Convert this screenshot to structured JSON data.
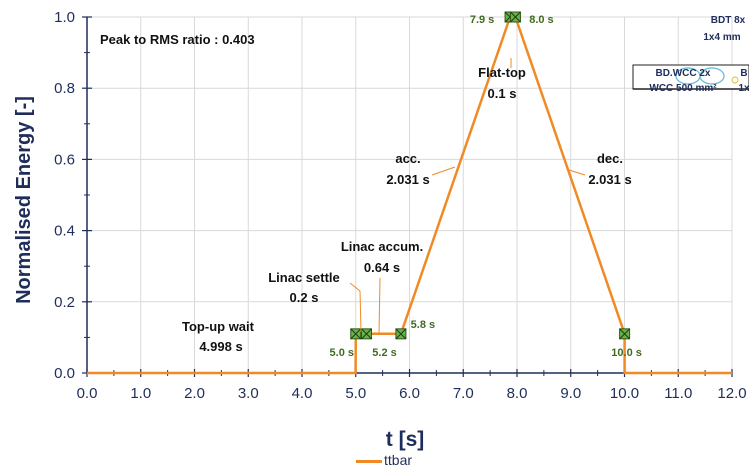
{
  "chart_data": {
    "type": "line",
    "title": "",
    "xlabel": "t [s]",
    "ylabel": "Normalised Energy [-]",
    "xlim": [
      0,
      12
    ],
    "ylim": [
      0,
      1
    ],
    "xticks": [
      "0.0",
      "1.0",
      "2.0",
      "3.0",
      "4.0",
      "5.0",
      "6.0",
      "7.0",
      "8.0",
      "9.0",
      "10.0",
      "11.0",
      "12.0"
    ],
    "yticks": [
      "0.0",
      "0.2",
      "0.4",
      "0.6",
      "0.8",
      "1.0"
    ],
    "grid": true,
    "legend_position": "bottom",
    "series": [
      {
        "name": "ttbar",
        "color": "#f08a24",
        "x": [
          0,
          4.998,
          5.0,
          5.2,
          5.84,
          7.871,
          7.971,
          10.002,
          10.002,
          12.0
        ],
        "y": [
          0,
          0,
          0.11,
          0.11,
          0.11,
          1.0,
          1.0,
          0.11,
          0,
          0
        ]
      }
    ],
    "markers": {
      "color": "#3f8f1f",
      "points": [
        {
          "x": 5.0,
          "y": 0.11,
          "label": "5.0 s"
        },
        {
          "x": 5.2,
          "y": 0.11,
          "label": "5.2 s"
        },
        {
          "x": 5.84,
          "y": 0.11,
          "label": "5.8 s"
        },
        {
          "x": 7.871,
          "y": 1.0,
          "label": "7.9 s"
        },
        {
          "x": 7.971,
          "y": 1.0,
          "label": "8.0 s"
        },
        {
          "x": 10.002,
          "y": 0.11,
          "label": "10.0 s"
        }
      ]
    },
    "annotations": {
      "peak_rms": "Peak to RMS ratio : 0.403",
      "topup": [
        "Top-up wait",
        "4.998 s"
      ],
      "settle": [
        "Linac settle",
        "0.2 s"
      ],
      "accum": [
        "Linac accum.",
        "0.64 s"
      ],
      "acc": [
        "acc.",
        "2.031 s"
      ],
      "flattop": [
        "Flat-top",
        "0.1 s"
      ],
      "dec": [
        "dec.",
        "2.031 s"
      ]
    },
    "inset": {
      "bdt_label": [
        "BDT 8x",
        "1x4 mm"
      ],
      "wcc_label": [
        "BD.WCC 2x",
        "WCC 500 mm²"
      ],
      "b_label": [
        "B",
        "1x"
      ]
    }
  }
}
